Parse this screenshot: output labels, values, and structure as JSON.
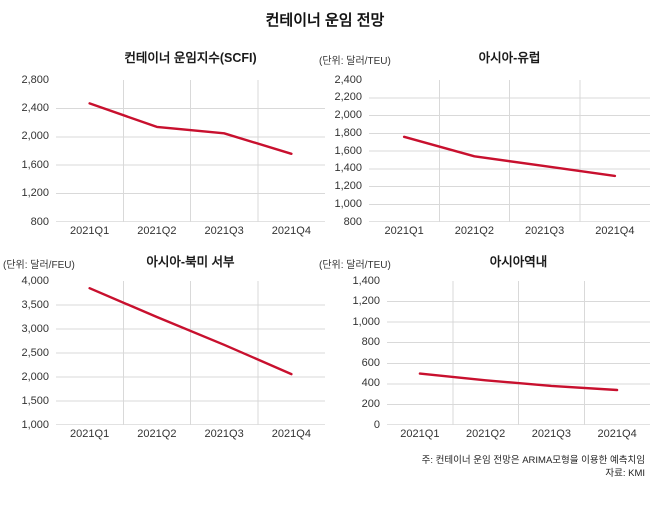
{
  "page": {
    "title": "컨테이너 운임 전망"
  },
  "footer": {
    "note": "주: 컨테이너 운임 전망은 ARIMA모형을 이용한 예측치임",
    "source": "자료: KMI"
  },
  "colors": {
    "line": "#c8102e",
    "grid": "#d9d9d9",
    "axis": "#c6c6c6",
    "tick_text": "#333333",
    "title_text": "#1a1a1a"
  },
  "chart_data": [
    {
      "id": "scfi",
      "type": "line",
      "title": "컨테이너 운임지수(SCFI)",
      "unit": "",
      "categories": [
        "2021Q1",
        "2021Q2",
        "2021Q3",
        "2021Q4"
      ],
      "values": [
        2470,
        2140,
        2050,
        1760
      ],
      "ylim": [
        800,
        2800
      ],
      "yticks": [
        800,
        1200,
        1600,
        2000,
        2400,
        2800
      ],
      "xlabel": "",
      "ylabel": "",
      "grid": true,
      "legend": "none"
    },
    {
      "id": "asia-europe",
      "type": "line",
      "title": "아시아-유럽",
      "unit": "(단위: 달러/TEU)",
      "categories": [
        "2021Q1",
        "2021Q2",
        "2021Q3",
        "2021Q4"
      ],
      "values": [
        1760,
        1540,
        1430,
        1320
      ],
      "ylim": [
        800,
        2400
      ],
      "yticks": [
        800,
        1000,
        1200,
        1400,
        1600,
        1800,
        2000,
        2200,
        2400
      ],
      "xlabel": "",
      "ylabel": "",
      "grid": true,
      "legend": "none"
    },
    {
      "id": "asia-northamerica-west",
      "type": "line",
      "title": "아시아-북미 서부",
      "unit": "(단위: 달러/FEU)",
      "categories": [
        "2021Q1",
        "2021Q2",
        "2021Q3",
        "2021Q4"
      ],
      "values": [
        3850,
        3250,
        2670,
        2060
      ],
      "ylim": [
        1000,
        4000
      ],
      "yticks": [
        1000,
        1500,
        2000,
        2500,
        3000,
        3500,
        4000
      ],
      "xlabel": "",
      "ylabel": "",
      "grid": true,
      "legend": "none"
    },
    {
      "id": "intra-asia",
      "type": "line",
      "title": "아시아역내",
      "unit": "(단위: 달러/TEU)",
      "categories": [
        "2021Q1",
        "2021Q2",
        "2021Q3",
        "2021Q4"
      ],
      "values": [
        500,
        435,
        380,
        340
      ],
      "ylim": [
        0,
        1400
      ],
      "yticks": [
        0,
        200,
        400,
        600,
        800,
        1000,
        1200,
        1400
      ],
      "xlabel": "",
      "ylabel": "",
      "grid": true,
      "legend": "none"
    }
  ]
}
